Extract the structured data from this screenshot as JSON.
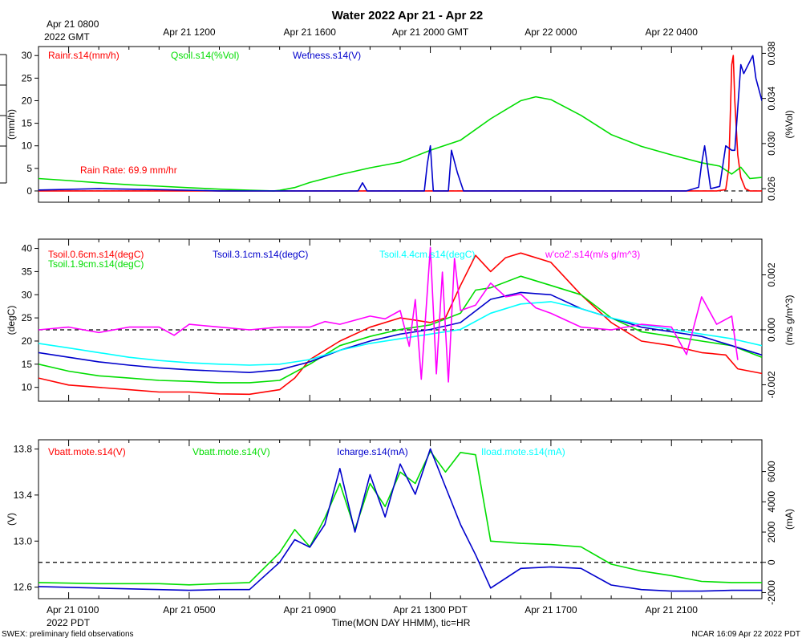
{
  "title": "Water 2022 Apr 21 - Apr 22",
  "footer_left": "SWEX: preliminary field observations",
  "footer_right": "NCAR 16:09 Apr 22 2022 PDT",
  "top_axis": {
    "corner_line1": "Apr 21 0800",
    "corner_line2": "2022 GMT",
    "ticks": [
      {
        "hour": 4,
        "label": "Apr 21 1200"
      },
      {
        "hour": 8,
        "label": "Apr 21 1600"
      },
      {
        "hour": 12,
        "label": "Apr 21 2000 GMT"
      },
      {
        "hour": 16,
        "label": "Apr 22 0000"
      },
      {
        "hour": 20,
        "label": "Apr 22 0400"
      }
    ]
  },
  "bottom_axis": {
    "corner_line1": "Apr 21 0100",
    "corner_line2": "2022 PDT",
    "ticks": [
      {
        "hour": 4,
        "label": "Apr 21 0500"
      },
      {
        "hour": 8,
        "label": "Apr 21 0900"
      },
      {
        "hour": 12,
        "label": "Apr 21 1300 PDT"
      },
      {
        "hour": 16,
        "label": "Apr 21 1700"
      },
      {
        "hour": 20,
        "label": "Apr 21 2100"
      }
    ],
    "label": "Time(MON DAY HHMM), tic=HR"
  },
  "x_range_hours": [
    -1,
    23
  ],
  "chart_data": [
    {
      "type": "line",
      "id": "water",
      "ylabel_left": "(mm/h)",
      "ylabel_right": "(%Vol)",
      "ylim_left": [
        -2.5,
        32
      ],
      "ylim_right": [
        0.0248,
        0.0386
      ],
      "yticks_left": [
        0,
        5,
        10,
        15,
        20,
        25,
        30
      ],
      "yticks_right": [
        0.026,
        0.03,
        0.034,
        0.038
      ],
      "yticklabels_right": [
        "0.026",
        "0.030",
        "0.034",
        "0.038"
      ],
      "reference_line": 0,
      "annotation": "Rain Rate: 69.9 mm/hr",
      "series": [
        {
          "name": "Rainr.s14(mm/h)",
          "color": "#ff0000",
          "axis": "left",
          "x": [
            -1,
            21.5,
            21.8,
            21.9,
            22.0,
            22.05,
            22.1,
            22.2,
            22.3,
            22.45,
            22.6,
            23
          ],
          "y": [
            0,
            0,
            0.3,
            5,
            28,
            30,
            20,
            8,
            3,
            0.5,
            0,
            0
          ]
        },
        {
          "name": "Qsoil.s14(%Vol)",
          "color": "#00dd00",
          "axis": "right",
          "x": [
            -1,
            0,
            1,
            2,
            3,
            4,
            5,
            6,
            6.8,
            7,
            7.5,
            8,
            9,
            10,
            11,
            12,
            13,
            14,
            15,
            15.5,
            16,
            17,
            18,
            19,
            20,
            21,
            21.6,
            22,
            22.3,
            22.6,
            23
          ],
          "y": [
            0.0269,
            0.02672,
            0.02652,
            0.02635,
            0.02622,
            0.02609,
            0.02596,
            0.02586,
            0.0258,
            0.02585,
            0.0261,
            0.02655,
            0.02725,
            0.02785,
            0.02835,
            0.0294,
            0.0303,
            0.0322,
            0.0338,
            0.03415,
            0.0339,
            0.0325,
            0.0308,
            0.02975,
            0.029,
            0.0283,
            0.028,
            0.0273,
            0.0279,
            0.0269,
            0.027
          ]
        },
        {
          "name": "Wetness.s14(V)",
          "color": "#0000cc",
          "axis": "left",
          "x": [
            -1,
            1,
            3,
            5,
            8.5,
            9.6,
            9.75,
            9.9,
            11.8,
            11.9,
            12.0,
            12.1,
            12.6,
            12.7,
            12.9,
            13.1,
            20.5,
            20.9,
            21.0,
            21.1,
            21.3,
            21.6,
            21.8,
            22.0,
            22.1,
            22.3,
            22.4,
            22.7,
            22.8,
            23.0
          ],
          "y": [
            0.2,
            0.5,
            0.3,
            0,
            0,
            0,
            1.8,
            0,
            0,
            6,
            10,
            0,
            0,
            9,
            4,
            0,
            0,
            0.8,
            6,
            10,
            0.5,
            1,
            10,
            9,
            9,
            28,
            26,
            30,
            25,
            20
          ]
        }
      ]
    },
    {
      "type": "line",
      "id": "temperature",
      "ylabel_left": "(degC)",
      "ylabel_right": "(m/s g/m^3)",
      "ylim_left": [
        7,
        42
      ],
      "ylim_right": [
        -0.0026,
        0.0033
      ],
      "yticks_left": [
        10,
        15,
        20,
        25,
        30,
        35,
        40
      ],
      "yticks_right": [
        -0.002,
        0.0,
        0.002
      ],
      "yticklabels_right": [
        "-0.002",
        "0.000",
        "0.002"
      ],
      "reference_line_right": 0,
      "series": [
        {
          "name": "Tsoil.0.6cm.s14(degC)",
          "color": "#ff0000",
          "axis": "left",
          "x": [
            -1,
            0,
            1,
            2,
            3,
            4,
            5,
            6,
            7,
            7.5,
            8,
            9,
            10,
            11,
            12,
            12.5,
            13,
            13.5,
            14,
            14.5,
            15,
            16,
            17,
            18,
            19,
            20,
            21,
            21.8,
            22.2,
            23
          ],
          "y": [
            12,
            10.5,
            10,
            9.5,
            9,
            9,
            8.6,
            8.5,
            9.5,
            12,
            16,
            20,
            23,
            25,
            24,
            25,
            32,
            38.5,
            35,
            38,
            39,
            37,
            30,
            24,
            20,
            19,
            17.5,
            17,
            14,
            13
          ]
        },
        {
          "name": "Tsoil.1.9cm.s14(degC)",
          "color": "#00dd00",
          "axis": "left",
          "x": [
            -1,
            0,
            1,
            2,
            3,
            4,
            5,
            6,
            7,
            8,
            9,
            10,
            11,
            12,
            13,
            13.5,
            14,
            15,
            16,
            17,
            18,
            19,
            20,
            21,
            22,
            23
          ],
          "y": [
            15,
            13.5,
            12.5,
            12,
            11.5,
            11.3,
            11,
            11,
            11.5,
            15,
            19,
            21,
            22.5,
            23.5,
            26,
            31,
            31.5,
            34,
            32,
            30,
            25,
            22,
            21,
            20,
            19,
            16.5
          ]
        },
        {
          "name": "Tsoil.3.1cm.s14(degC)",
          "color": "#0000cc",
          "axis": "left",
          "x": [
            -1,
            0,
            1,
            2,
            3,
            4,
            5,
            6,
            7,
            8,
            9,
            10,
            11,
            12,
            13,
            14,
            15,
            16,
            17,
            18,
            19,
            20,
            21,
            22,
            23
          ],
          "y": [
            17.5,
            16.5,
            15.5,
            14.8,
            14.2,
            13.8,
            13.5,
            13.2,
            13.8,
            15.5,
            18,
            20,
            21.5,
            22.5,
            24,
            29,
            30.5,
            30,
            27,
            25,
            23,
            22,
            21,
            19,
            17
          ]
        },
        {
          "name": "Tsoil.4.4cm.s14(degC)",
          "color": "#00ffff",
          "axis": "left",
          "x": [
            -1,
            0,
            1,
            2,
            3,
            4,
            5,
            6,
            7,
            8,
            9,
            10,
            11,
            12,
            13,
            14,
            15,
            16,
            17,
            18,
            19,
            20,
            21,
            22,
            23
          ],
          "y": [
            19.5,
            18.5,
            17.5,
            16.5,
            15.8,
            15.3,
            15,
            14.8,
            15,
            16,
            18,
            19.5,
            20.5,
            21.5,
            22.5,
            26,
            28,
            28.5,
            27,
            25,
            23.5,
            22.5,
            21.5,
            20.5,
            19
          ]
        },
        {
          "name": "w'co2'.s14(m/s g/m^3)",
          "color": "#ff00ff",
          "axis": "right",
          "x": [
            -1,
            0,
            1,
            2,
            3,
            3.5,
            4,
            5,
            6,
            7,
            8,
            8.5,
            9,
            10,
            10.5,
            11,
            11.3,
            11.5,
            11.7,
            12,
            12.2,
            12.4,
            12.6,
            12.8,
            13,
            13.5,
            14,
            14.5,
            15,
            15.5,
            16,
            17,
            18,
            19,
            20,
            20.5,
            21,
            21.5,
            22,
            22.2
          ],
          "y": [
            0.0,
            0.0001,
            -0.0001,
            0.0001,
            0.0001,
            -0.0002,
            0.0002,
            0.0001,
            0.0,
            0.0001,
            0.0001,
            0.0003,
            0.0002,
            0.0005,
            0.0004,
            0.0007,
            -0.0006,
            0.0011,
            -0.0018,
            0.003,
            -0.0016,
            0.0021,
            -0.0019,
            0.0026,
            0.0007,
            0.0009,
            0.0017,
            0.0012,
            0.0013,
            0.0008,
            0.0006,
            0.0001,
            0.0,
            0.0002,
            0.0001,
            -0.0009,
            0.0012,
            0.0002,
            0.0005,
            -0.0011
          ]
        }
      ]
    },
    {
      "type": "line",
      "id": "battery",
      "ylabel_left": "(V)",
      "ylabel_right": "(mA)",
      "ylim_left": [
        12.5,
        13.88
      ],
      "ylim_right": [
        -2400,
        8100
      ],
      "yticks_left": [
        12.6,
        13.0,
        13.4,
        13.8
      ],
      "yticklabels_left": [
        "12.6",
        "13.0",
        "13.4",
        "13.8"
      ],
      "yticks_right": [
        -2000,
        0,
        2000,
        4000,
        6000
      ],
      "reference_line_right": 0,
      "series": [
        {
          "name": "Vbatt.mote.s14(V)",
          "color": "#ff0000",
          "axis": "left",
          "x": [],
          "y": []
        },
        {
          "name": "Vbatt.mote.s14(V)",
          "color": "#00dd00",
          "axis": "left",
          "x": [
            -1,
            1,
            3,
            4,
            5,
            6,
            7,
            7.5,
            8,
            8.5,
            9,
            9.5,
            10,
            10.5,
            11,
            11.5,
            12,
            12.5,
            13,
            13.5,
            14,
            15,
            16,
            17,
            18,
            19,
            20,
            21,
            22,
            23
          ],
          "y": [
            12.64,
            12.63,
            12.63,
            12.62,
            12.63,
            12.64,
            12.9,
            13.1,
            12.95,
            13.2,
            13.5,
            13.1,
            13.5,
            13.3,
            13.6,
            13.5,
            13.78,
            13.6,
            13.77,
            13.75,
            13.0,
            12.98,
            12.97,
            12.95,
            12.8,
            12.74,
            12.7,
            12.65,
            12.64,
            12.64
          ]
        },
        {
          "name": "Icharge.s14(mA)",
          "color": "#0000cc",
          "axis": "right",
          "x": [
            -1,
            1,
            3,
            4,
            5,
            6,
            7,
            7.5,
            8,
            8.5,
            9,
            9.5,
            10,
            10.5,
            11,
            11.5,
            12,
            12.5,
            13,
            13.5,
            14,
            15,
            16,
            17,
            18,
            19,
            20,
            21,
            22,
            23
          ],
          "y": [
            -1600,
            -1700,
            -1800,
            -1850,
            -1800,
            -1800,
            0,
            1500,
            1000,
            2500,
            6200,
            2000,
            5800,
            3000,
            6500,
            4500,
            7500,
            5000,
            2500,
            500,
            -1700,
            -400,
            -300,
            -400,
            -1500,
            -1800,
            -1900,
            -1900,
            -1850,
            -1850
          ]
        },
        {
          "name": "Iload.mote.s14(mA)",
          "color": "#00ffff",
          "axis": "right",
          "x": [],
          "y": []
        }
      ]
    }
  ]
}
